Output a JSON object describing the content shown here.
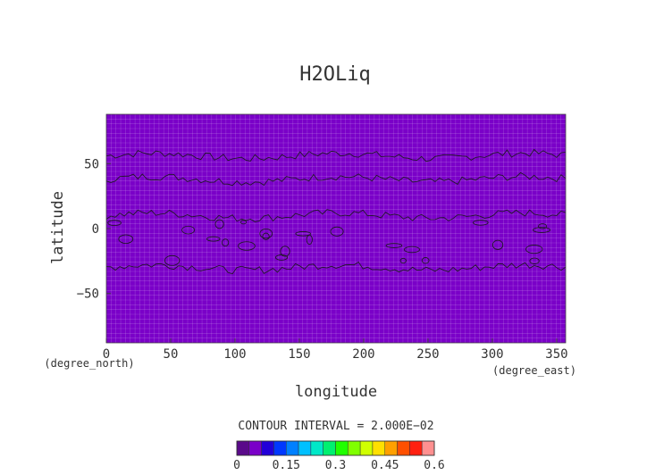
{
  "chart_data": {
    "type": "heatmap",
    "title": "H2OLiq",
    "xlabel": "longitude",
    "ylabel": "latitude",
    "x_units": "(degree_east)",
    "y_units": "(degree_north)",
    "xlim": [
      0,
      357
    ],
    "ylim": [
      -88,
      88
    ],
    "x_ticks": [
      0,
      50,
      100,
      150,
      200,
      250,
      300,
      350
    ],
    "y_ticks": [
      -50,
      0,
      50
    ],
    "x_tick_labels": [
      "0",
      "50",
      "100",
      "150",
      "200",
      "250",
      "300",
      "350"
    ],
    "y_tick_labels": [
      "−50",
      "0",
      "50"
    ],
    "contour_interval_text": "CONTOUR INTERVAL = 2.000E−02",
    "colorbar": {
      "range": [
        0,
        0.6
      ],
      "tick_values": [
        0,
        0.15,
        0.3,
        0.45,
        0.6
      ],
      "tick_labels": [
        "0",
        "0.15",
        "0.3",
        "0.45",
        "0.6"
      ],
      "colors": [
        "#5a0a8a",
        "#7a00c8",
        "#2200d8",
        "#0038ff",
        "#0080ff",
        "#00c0ff",
        "#00e8c8",
        "#00f070",
        "#20ff00",
        "#80ff00",
        "#d0ff00",
        "#ffe000",
        "#ffa000",
        "#ff5000",
        "#ff2010",
        "#ff9090"
      ]
    },
    "field_color": "#7a00c8",
    "contour_levels": [
      0.02
    ],
    "contour_bands": [
      {
        "lat_min": 38,
        "lat_max": 56
      },
      {
        "lat_min": -30,
        "lat_max": 10
      }
    ]
  }
}
